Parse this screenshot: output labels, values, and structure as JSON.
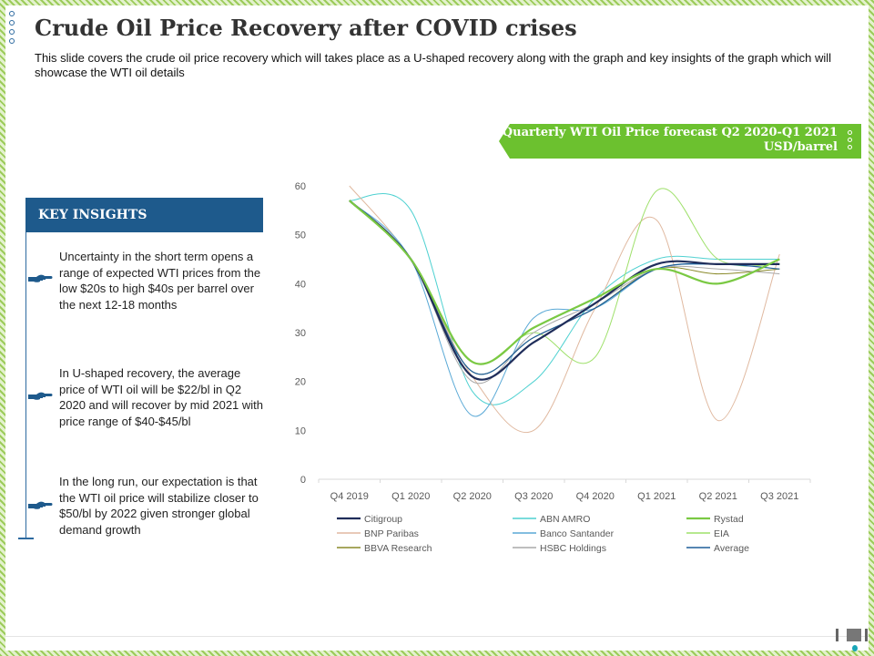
{
  "title": "Crude Oil Price Recovery after COVID crises",
  "subtitle": "This slide covers the crude oil price recovery which will takes place as a U-shaped recovery along with the graph and key insights of the graph which will showcase the WTI oil details",
  "banner_text": "Quarterly WTI Oil Price forecast Q2 2020-Q1 2021\nUSD/barrel",
  "key_insights": {
    "header": "KEY INSIGHTS",
    "items": [
      "Uncertainty in the short term opens a range of expected WTI prices from the low $20s to high $40s  per barrel over the next 12-18  months",
      "In U-shaped recovery, the average price of WTI oil will be $22/bl in Q2 2020 and will recover by mid 2021 with price range of $40-$45/bl",
      "In the long run, our expectation is that the WTI oil price will stabilize closer to $50/bl by 2022 given stronger global demand growth"
    ]
  },
  "chart_data": {
    "type": "line",
    "categories": [
      "Q4 2019",
      "Q1 2020",
      "Q2 2020",
      "Q3 2020",
      "Q4 2020",
      "Q1 2021",
      "Q2 2021",
      "Q3 2021"
    ],
    "ylim": [
      0,
      60
    ],
    "yticks": [
      0,
      10,
      20,
      30,
      40,
      50,
      60
    ],
    "title": "",
    "xlabel": "",
    "ylabel": "",
    "legend_position": "bottom",
    "grid": false,
    "series": [
      {
        "name": "Citigroup",
        "color": "#1f2d5a",
        "width": 2.2,
        "values": [
          57,
          45,
          21,
          28,
          36,
          44,
          44,
          44
        ]
      },
      {
        "name": "ABN AMRO",
        "color": "#4fd1d1",
        "width": 1,
        "values": [
          57,
          55,
          18,
          20,
          37,
          45,
          45,
          45
        ]
      },
      {
        "name": "Rystad",
        "color": "#7ac943",
        "width": 2.2,
        "values": [
          57,
          45,
          24,
          31,
          37,
          43,
          40,
          45
        ]
      },
      {
        "name": "BNP Paribas",
        "color": "#e0b9a0",
        "width": 1,
        "values": [
          60,
          45,
          21,
          10,
          35,
          53,
          12,
          46
        ]
      },
      {
        "name": "Banco Santander",
        "color": "#5aa9d6",
        "width": 1,
        "values": [
          57,
          45,
          13,
          33,
          35,
          43,
          44,
          44
        ]
      },
      {
        "name": "EIA",
        "color": "#9ee06a",
        "width": 1,
        "values": [
          57,
          45,
          24,
          30,
          25,
          59,
          45,
          44
        ]
      },
      {
        "name": "BBVA Research",
        "color": "#8a8a2a",
        "width": 1,
        "values": [
          57,
          45,
          22,
          29,
          35,
          43,
          42,
          43
        ]
      },
      {
        "name": "HSBC Holdings",
        "color": "#a8a8a8",
        "width": 1,
        "values": [
          57,
          45,
          20,
          30,
          36,
          43,
          43,
          42
        ]
      },
      {
        "name": "Average",
        "color": "#1f5f99",
        "width": 1.2,
        "values": [
          57,
          45,
          22,
          29,
          35,
          43,
          44,
          43
        ]
      }
    ]
  }
}
